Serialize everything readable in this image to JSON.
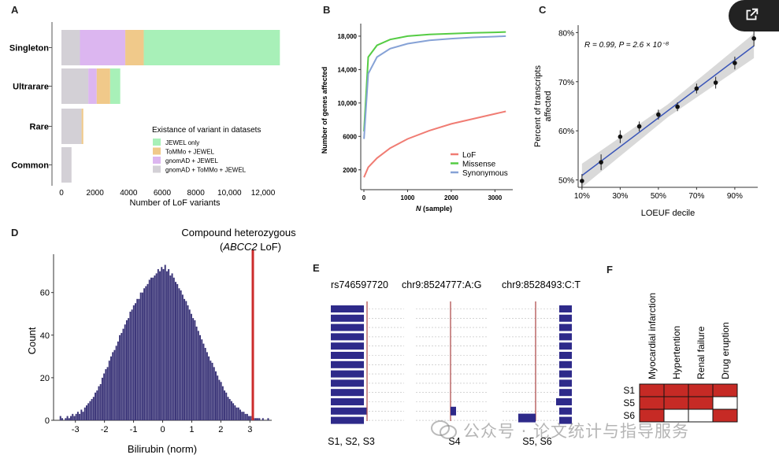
{
  "colors": {
    "jewel": "#a8f0b8",
    "tommo": "#f0c98a",
    "gnomad": "#dcb6f0",
    "gnomad_tommo": "#d3d0d6",
    "lof": "#f07c73",
    "missense": "#55cc44",
    "synonymous": "#86a2d6",
    "hist_bar": "#3a3478",
    "red_line": "#cc2b2b",
    "reads": "#2e2a8a",
    "heat_red": "#c62a25"
  },
  "chart_data": [
    {
      "panel": "A",
      "type": "bar",
      "orientation": "horizontal",
      "stacked": true,
      "categories": [
        "Singleton",
        "Ultrarare",
        "Rare",
        "Common"
      ],
      "series": [
        {
          "name": "gnomAD + ToMMo + JEWEL",
          "values": [
            1100,
            1600,
            1200,
            600
          ]
        },
        {
          "name": "gnomAD + JEWEL",
          "values": [
            2700,
            500,
            0,
            0
          ]
        },
        {
          "name": "ToMMo + JEWEL",
          "values": [
            1100,
            800,
            100,
            0
          ]
        },
        {
          "name": "JEWEL only",
          "values": [
            8100,
            600,
            0,
            0
          ]
        }
      ],
      "legend_title": "Existance of variant in datasets",
      "legend": [
        "JEWEL only",
        "ToMMo + JEWEL",
        "gnomAD + JEWEL",
        "gnomAD + ToMMo + JEWEL"
      ],
      "xticks": [
        "0",
        "2000",
        "4000",
        "6000",
        "8000",
        "10,000",
        "12,000"
      ],
      "xlabel": "Number of LoF variants",
      "xlim": [
        0,
        13500
      ]
    },
    {
      "panel": "B",
      "type": "line",
      "series": [
        {
          "name": "LoF",
          "x": [
            1,
            100,
            300,
            600,
            1000,
            1500,
            2000,
            2500,
            3000,
            3250
          ],
          "y": [
            1100,
            2300,
            3400,
            4600,
            5700,
            6700,
            7500,
            8100,
            8700,
            9000
          ]
        },
        {
          "name": "Missense",
          "x": [
            1,
            100,
            300,
            600,
            1000,
            1500,
            2000,
            2500,
            3000,
            3250
          ],
          "y": [
            6600,
            15500,
            16900,
            17600,
            18000,
            18200,
            18300,
            18400,
            18450,
            18500
          ]
        },
        {
          "name": "Synonymous",
          "x": [
            1,
            100,
            300,
            600,
            1000,
            1500,
            2000,
            2500,
            3000,
            3250
          ],
          "y": [
            5700,
            13500,
            15500,
            16500,
            17100,
            17500,
            17700,
            17850,
            17950,
            18000
          ]
        }
      ],
      "yticks": [
        "2000",
        "6000",
        "10,000",
        "14,000",
        "18,000"
      ],
      "xticks": [
        "0",
        "1000",
        "2000",
        "3000"
      ],
      "ylabel": "Number of genes affected",
      "xlabel_italic": "N",
      "xlabel_rest": " (sample)",
      "xlim": [
        0,
        3300
      ],
      "ylim": [
        0,
        19500
      ]
    },
    {
      "panel": "C",
      "type": "scatter",
      "x": [
        10,
        20,
        30,
        40,
        50,
        60,
        70,
        80,
        90,
        100
      ],
      "y": [
        49.8,
        53.6,
        58.8,
        60.9,
        63.3,
        64.9,
        68.6,
        69.8,
        73.8,
        78.8
      ],
      "err": [
        1.4,
        1.6,
        1.3,
        1.0,
        1.0,
        0.9,
        1.0,
        1.2,
        1.3,
        1.6
      ],
      "fit": {
        "x0": 10,
        "y0": 50.9,
        "x1": 100,
        "y1": 77.3
      },
      "annotation": "R = 0.99, P = 2.6 × 10⁻⁸",
      "xticks": [
        "10%",
        "30%",
        "50%",
        "70%",
        "90%"
      ],
      "yticks": [
        "50%",
        "60%",
        "70%",
        "80%"
      ],
      "xlabel": "LOEUF decile",
      "ylabel_line1": "Percent of transcripts",
      "ylabel_line2": "affected",
      "xlim": [
        8,
        102
      ],
      "ylim": [
        48.5,
        81.5
      ]
    },
    {
      "panel": "D",
      "type": "bar",
      "subtype": "histogram",
      "bin_width": 0.06,
      "x_start": -3.6,
      "counts": [
        0,
        2,
        1,
        0,
        1,
        2,
        1,
        2,
        3,
        2,
        3,
        4,
        3,
        5,
        4,
        6,
        7,
        8,
        9,
        10,
        11,
        13,
        14,
        16,
        17,
        20,
        22,
        24,
        25,
        28,
        30,
        32,
        33,
        35,
        37,
        40,
        41,
        43,
        45,
        47,
        48,
        51,
        52,
        54,
        55,
        57,
        57,
        60,
        60,
        62,
        63,
        64,
        66,
        67,
        67,
        68,
        69,
        71,
        70,
        72,
        71,
        73,
        70,
        71,
        68,
        69,
        67,
        65,
        64,
        62,
        61,
        59,
        57,
        56,
        54,
        52,
        50,
        48,
        47,
        44,
        42,
        40,
        38,
        36,
        34,
        32,
        30,
        28,
        27,
        25,
        23,
        21,
        19,
        18,
        16,
        14,
        13,
        11,
        10,
        9,
        8,
        7,
        6,
        6,
        5,
        4,
        4,
        3,
        3,
        2,
        2,
        2,
        1,
        1,
        1,
        1,
        0,
        1,
        0,
        0,
        1
      ],
      "vline_x": 3.1,
      "vline_label_line1": "Compound heterozygous",
      "vline_label_line2_open": "(",
      "vline_label_line2_italic": "ABCC2",
      "vline_label_line2_rest": " LoF)",
      "xticks": [
        "-3",
        "-2",
        "-1",
        "0",
        "1",
        "2",
        "3"
      ],
      "yticks": [
        "0",
        "20",
        "40",
        "60"
      ],
      "xlabel": "Bilirubin (norm)",
      "ylabel": "Count",
      "xlim": [
        -3.75,
        3.75
      ],
      "ylim": [
        0,
        78
      ]
    },
    {
      "panel": "E",
      "type": "table",
      "subtype": "read-pileup",
      "variants": [
        "rs746597720",
        "chr9:8524777:A:G",
        "chr9:8528493:C:T"
      ],
      "samples": [
        "S1, S2, S3",
        "S4",
        "S5, S6"
      ]
    },
    {
      "panel": "F",
      "type": "heatmap",
      "columns": [
        "Myocardial infarction",
        "Hypertention",
        "Renal failure",
        "Drug eruption"
      ],
      "rows": [
        "S1",
        "S5",
        "S6"
      ],
      "values": [
        [
          1,
          1,
          1,
          1
        ],
        [
          1,
          1,
          1,
          0
        ],
        [
          1,
          0,
          0,
          1
        ]
      ]
    }
  ],
  "watermark": "公众号 · 论文统计与指导服务"
}
